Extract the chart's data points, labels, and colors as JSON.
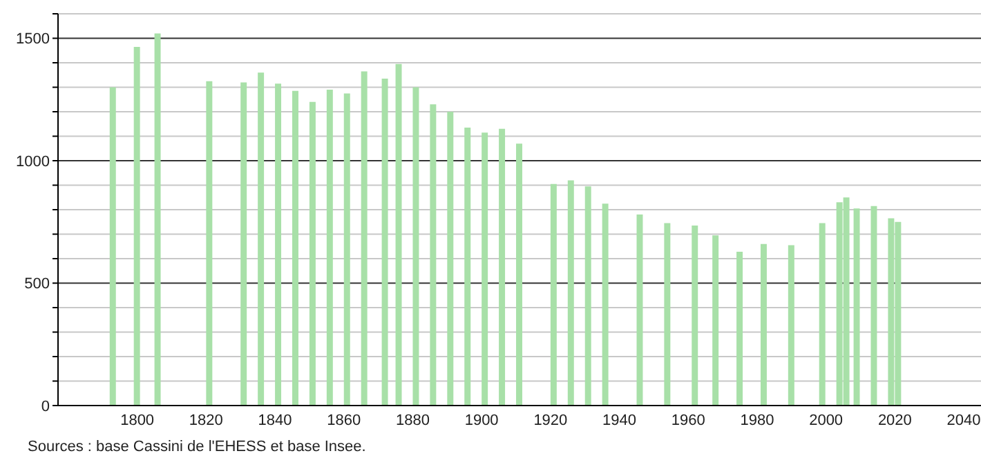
{
  "chart_data": {
    "type": "bar",
    "x": [
      1793,
      1800,
      1806,
      1821,
      1831,
      1836,
      1841,
      1846,
      1851,
      1856,
      1861,
      1866,
      1872,
      1876,
      1881,
      1886,
      1891,
      1896,
      1901,
      1906,
      1911,
      1921,
      1926,
      1931,
      1936,
      1946,
      1954,
      1962,
      1968,
      1975,
      1982,
      1990,
      1999,
      2004,
      2006,
      2009,
      2014,
      2019,
      2021
    ],
    "values": [
      1300,
      1465,
      1520,
      1325,
      1320,
      1360,
      1315,
      1285,
      1240,
      1290,
      1275,
      1365,
      1335,
      1395,
      1300,
      1230,
      1200,
      1135,
      1115,
      1130,
      1070,
      905,
      920,
      895,
      825,
      780,
      745,
      735,
      695,
      628,
      660,
      655,
      745,
      830,
      850,
      805,
      815,
      765,
      750
    ],
    "color": "#a8e0a8",
    "xlim": [
      1777,
      2045
    ],
    "xticks": [
      1800,
      1820,
      1840,
      1860,
      1880,
      1900,
      1920,
      1940,
      1960,
      1980,
      2000,
      2020,
      2040
    ],
    "ylim": [
      0,
      1600
    ],
    "yticks": [
      0,
      {
        "value": 100,
        "label": null
      },
      {
        "value": 200,
        "label": null
      },
      {
        "value": 300,
        "label": null
      },
      {
        "value": 400,
        "label": null
      },
      500,
      {
        "value": 600,
        "label": null
      },
      {
        "value": 700,
        "label": null
      },
      {
        "value": 800,
        "label": null
      },
      {
        "value": 900,
        "label": null
      },
      1000,
      {
        "value": 1100,
        "label": null
      },
      {
        "value": 1200,
        "label": null
      },
      {
        "value": 1300,
        "label": null
      },
      {
        "value": 1400,
        "label": null
      },
      1500,
      {
        "value": 1600,
        "label": null
      }
    ],
    "grid": "y",
    "annotations": [
      "Sources : base Cassini de l'EHESS et base Insee."
    ]
  }
}
